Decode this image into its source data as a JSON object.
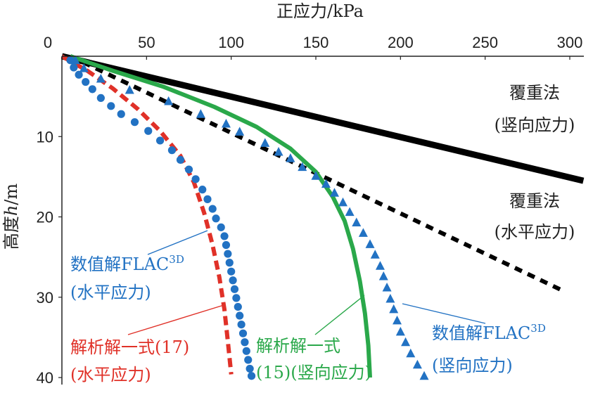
{
  "chart_data": {
    "type": "scatter",
    "title": "",
    "xlabel": "正应力/kPa",
    "ylabel_parts": [
      "高度",
      "h",
      "/m"
    ],
    "xlim": [
      0,
      300
    ],
    "ylim": [
      0,
      40
    ],
    "y_inverted": true,
    "x_axis_position": "top",
    "xticks": [
      0,
      50,
      100,
      150,
      200,
      250,
      300
    ],
    "yticks": [
      10,
      20,
      30,
      40
    ],
    "grid": false,
    "legend": "none",
    "series": [
      {
        "key": "overburden_vertical",
        "style": "solid-line",
        "color": "#000000",
        "points": [
          [
            0,
            0
          ],
          [
            308,
            15.5
          ]
        ]
      },
      {
        "key": "overburden_horizontal",
        "style": "dashed-line",
        "color": "#000000",
        "points": [
          [
            5,
            0
          ],
          [
            296,
            29.2
          ]
        ]
      },
      {
        "key": "analytic_vertical",
        "style": "solid-line",
        "color": "#2aa84a",
        "points": [
          [
            5,
            0
          ],
          [
            30,
            1.8
          ],
          [
            60,
            3.8
          ],
          [
            90,
            6.3
          ],
          [
            115,
            8.8
          ],
          [
            135,
            11.5
          ],
          [
            150,
            14.4
          ],
          [
            160,
            17.5
          ],
          [
            167,
            20.5
          ],
          [
            172,
            24
          ],
          [
            176,
            28
          ],
          [
            179,
            32
          ],
          [
            181,
            36
          ],
          [
            182,
            40
          ]
        ]
      },
      {
        "key": "analytic_horizontal",
        "style": "dashed-line",
        "color": "#e03128",
        "points": [
          [
            0,
            0
          ],
          [
            15,
            1.8
          ],
          [
            30,
            4
          ],
          [
            45,
            6.6
          ],
          [
            58,
            9.3
          ],
          [
            70,
            12.4
          ],
          [
            78,
            15.7
          ],
          [
            84,
            19.5
          ],
          [
            89,
            23.5
          ],
          [
            93,
            27.5
          ],
          [
            96,
            31.5
          ],
          [
            98,
            35.5
          ],
          [
            100,
            39.6
          ]
        ]
      },
      {
        "key": "flac_horizontal",
        "style": "circle-markers",
        "color": "#2272c3",
        "points": [
          [
            5,
            0.5
          ],
          [
            7,
            1.4
          ],
          [
            10,
            2.3
          ],
          [
            14,
            3.2
          ],
          [
            18,
            4.1
          ],
          [
            23,
            5.2
          ],
          [
            29,
            6.2
          ],
          [
            35,
            7.2
          ],
          [
            43,
            8.2
          ],
          [
            51,
            9.3
          ],
          [
            58,
            10.5
          ],
          [
            65,
            11.7
          ],
          [
            70,
            12.9
          ],
          [
            75,
            14.1
          ],
          [
            79,
            15.3
          ],
          [
            83,
            16.6
          ],
          [
            86,
            17.8
          ],
          [
            89,
            19
          ],
          [
            91,
            20.2
          ],
          [
            94,
            21.3
          ],
          [
            96,
            22.4
          ],
          [
            97,
            23.5
          ],
          [
            98,
            24.6
          ],
          [
            99,
            25.7
          ],
          [
            100,
            26.8
          ],
          [
            101,
            27.9
          ],
          [
            102,
            29
          ],
          [
            103,
            30.1
          ],
          [
            104,
            31.2
          ],
          [
            105,
            32.3
          ],
          [
            106,
            33.4
          ],
          [
            107,
            34.5
          ],
          [
            108,
            35.6
          ],
          [
            109,
            36.7
          ],
          [
            110,
            37.8
          ],
          [
            111,
            38.9
          ],
          [
            112,
            39.8
          ]
        ]
      },
      {
        "key": "flac_vertical",
        "style": "triangle-markers",
        "color": "#2272c3",
        "points": [
          [
            8,
            0.5
          ],
          [
            13,
            1.5
          ],
          [
            23,
            2.8
          ],
          [
            40,
            4.2
          ],
          [
            63,
            5.6
          ],
          [
            82,
            7.2
          ],
          [
            97,
            8.4
          ],
          [
            105,
            9.4
          ],
          [
            120,
            10.8
          ],
          [
            128,
            11.9
          ],
          [
            135,
            12.7
          ],
          [
            142,
            13.8
          ],
          [
            150,
            14.9
          ],
          [
            156,
            15.9
          ],
          [
            161,
            17
          ],
          [
            166,
            18.2
          ],
          [
            170,
            19.4
          ],
          [
            174,
            20.7
          ],
          [
            178,
            22
          ],
          [
            182,
            23.4
          ],
          [
            185,
            24.7
          ],
          [
            188,
            26.1
          ],
          [
            190,
            27.4
          ],
          [
            192,
            28.8
          ],
          [
            194,
            30.2
          ],
          [
            196,
            31.5
          ],
          [
            198,
            32.9
          ],
          [
            200,
            34.3
          ],
          [
            203,
            35.6
          ],
          [
            206,
            37
          ],
          [
            210,
            38.4
          ],
          [
            214,
            39.8
          ]
        ]
      }
    ],
    "annotations": [
      {
        "key": "overburden_vertical",
        "lines": [
          "覆重法",
          "(竖向应力)"
        ],
        "color": "#222222"
      },
      {
        "key": "overburden_horizontal",
        "lines": [
          "覆重法",
          "(水平应力)"
        ],
        "color": "#222222"
      },
      {
        "key": "flac_horizontal",
        "lines": [
          "数值解FLAC",
          "(水平应力)"
        ],
        "sup": "3D",
        "color": "#2272c3"
      },
      {
        "key": "analytic_horizontal",
        "lines": [
          "解析解一式(17)",
          "(水平应力)"
        ],
        "color": "#e03128"
      },
      {
        "key": "analytic_vertical",
        "lines": [
          "解析解一式",
          "(15)(竖向应力)"
        ],
        "color": "#2aa84a"
      },
      {
        "key": "flac_vertical",
        "lines": [
          "数值解FLAC",
          "(竖向应力)"
        ],
        "sup": "3D",
        "color": "#2272c3"
      }
    ]
  }
}
